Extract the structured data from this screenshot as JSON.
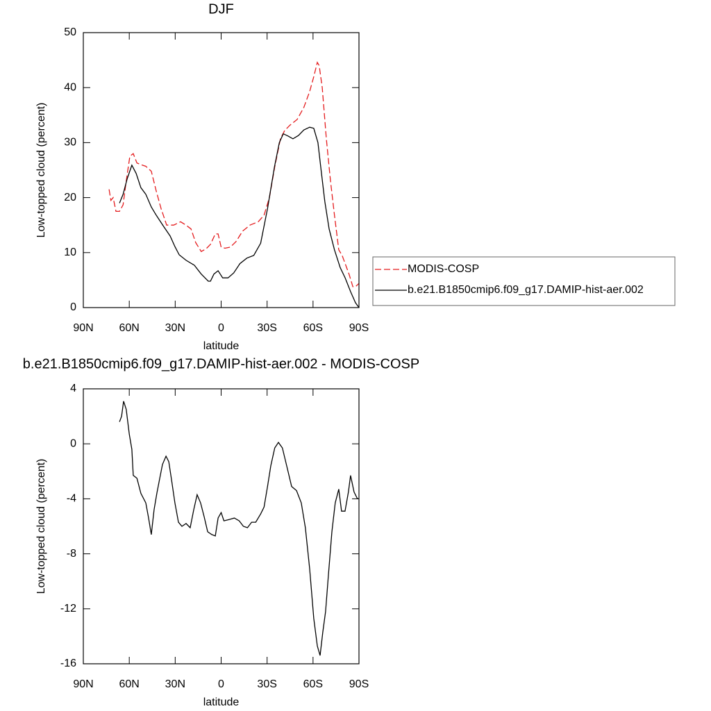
{
  "chart_data": [
    {
      "type": "line",
      "title": "DJF",
      "xlabel": "latitude",
      "ylabel": "Low-topped cloud (percent)",
      "xlim": [
        90,
        -90
      ],
      "xticks": [
        {
          "value": 90,
          "label": "90N"
        },
        {
          "value": 60,
          "label": "60N"
        },
        {
          "value": 30,
          "label": "30N"
        },
        0,
        {
          "value": -30,
          "label": "30S"
        },
        {
          "value": -60,
          "label": "60S"
        },
        {
          "value": -90,
          "label": "90S"
        }
      ],
      "ylim": [
        0,
        50
      ],
      "yticks": [
        0,
        10,
        20,
        30,
        40,
        50
      ],
      "legend": "right",
      "series": [
        {
          "name": "MODIS-COSP",
          "color": "#e41a1c",
          "dashed": true,
          "x": [
            73.2,
            72,
            70.5,
            68.7,
            66.4,
            64,
            62,
            59.6,
            57.4,
            55,
            52.4,
            49.2,
            45.6,
            42.4,
            39.2,
            35.6,
            31,
            26.5,
            23,
            19.7,
            16.6,
            13,
            9.8,
            7,
            3.8,
            2,
            0,
            -2.5,
            -6,
            -9.7,
            -14,
            -18.8,
            -24.2,
            -28,
            -31.5,
            -35,
            -38.7,
            -41.5,
            -45,
            -49.6,
            -54,
            -57.8,
            -60.5,
            -62.8,
            -64,
            -66,
            -68.7,
            -71.4,
            -74,
            -76.8,
            -79,
            -81,
            -83.6,
            -86,
            -87.7,
            -90
          ],
          "values": [
            21.5,
            19.5,
            20,
            17.5,
            17.5,
            18.7,
            23,
            27.5,
            28,
            26.3,
            26,
            25.7,
            24.8,
            21.2,
            18,
            15,
            15,
            15.6,
            15,
            14.3,
            11.8,
            10.2,
            10.7,
            11.5,
            13.4,
            13.4,
            11,
            10.8,
            11,
            12,
            13.9,
            15,
            15.6,
            16.8,
            20,
            25.6,
            30.7,
            32.2,
            33.2,
            34.2,
            36.4,
            39.3,
            42,
            44.6,
            44,
            40,
            30.7,
            23,
            16.8,
            10.5,
            9.5,
            8,
            6,
            3.8,
            3.8,
            4.4
          ]
        },
        {
          "name": "b.e21.B1850cmip6.f09_g17.DAMIP-hist-aer.002",
          "color": "#000000",
          "dashed": false,
          "x": [
            66.4,
            64,
            61.4,
            58.3,
            55.5,
            52.4,
            49.2,
            45.6,
            42.4,
            37.9,
            33.3,
            30.2,
            27.4,
            22.9,
            17.5,
            13,
            8.4,
            7,
            4.7,
            2,
            -1,
            -4.5,
            -8.2,
            -12.3,
            -16.8,
            -21.3,
            -25.8,
            -30.3,
            -34.8,
            -38,
            -40.6,
            -43.7,
            -46.9,
            -50.5,
            -54,
            -57.8,
            -60.5,
            -63.2,
            -65,
            -67.7,
            -70.5,
            -74,
            -77.7,
            -81,
            -84.5,
            -87.7,
            -90
          ],
          "values": [
            19,
            20.6,
            23.4,
            25.9,
            24.4,
            21.8,
            20.6,
            18.3,
            16.8,
            14.9,
            13,
            11.1,
            9.6,
            8.6,
            7.7,
            6.1,
            4.8,
            4.8,
            6.1,
            6.7,
            5.4,
            5.4,
            6.3,
            8,
            9,
            9.5,
            11.7,
            18,
            25.6,
            30,
            31.6,
            31.2,
            30.7,
            31.3,
            32.3,
            32.8,
            32.6,
            30,
            25.6,
            19.3,
            14.3,
            10.5,
            7.3,
            5.4,
            2.9,
            0.9,
            0
          ]
        }
      ]
    },
    {
      "type": "line",
      "title": "b.e21.B1850cmip6.f09_g17.DAMIP-hist-aer.002 - MODIS-COSP",
      "xlabel": "latitude",
      "ylabel": "Low-topped cloud (percent)",
      "xlim": [
        90,
        -90
      ],
      "xticks": [
        {
          "value": 90,
          "label": "90N"
        },
        {
          "value": 60,
          "label": "60N"
        },
        {
          "value": 30,
          "label": "30N"
        },
        0,
        {
          "value": -30,
          "label": "30S"
        },
        {
          "value": -60,
          "label": "60S"
        },
        {
          "value": -90,
          "label": "90S"
        }
      ],
      "ylim": [
        -16,
        4
      ],
      "yticks": [
        -16,
        -12,
        -8,
        -4,
        0,
        4
      ],
      "series": [
        {
          "color": "#000000",
          "dashed": false,
          "x": [
            66.4,
            65,
            63.7,
            62,
            60,
            58.3,
            57.4,
            55,
            52.4,
            49.2,
            47.4,
            45.6,
            43.8,
            42,
            40.1,
            38.3,
            36,
            34.2,
            32.4,
            30.2,
            27.9,
            25.6,
            22.9,
            20.2,
            17.9,
            15.7,
            13.4,
            11.1,
            8.8,
            6.1,
            3.8,
            2,
            0,
            -1.8,
            -5.4,
            -8.6,
            -11.8,
            -14.5,
            -17.2,
            -19.9,
            -22.6,
            -25.8,
            -28,
            -30.3,
            -32.4,
            -35,
            -37.4,
            -40,
            -42.8,
            -46,
            -49.2,
            -52.3,
            -55,
            -57.8,
            -60.5,
            -62.8,
            -64.6,
            -66.4,
            -68.2,
            -70,
            -72.3,
            -74.5,
            -76.8,
            -78.6,
            -80.9,
            -83.1,
            -84.5,
            -86.8,
            -89,
            -90
          ],
          "values": [
            1.6,
            2,
            3.1,
            2.5,
            0.7,
            -0.4,
            -2.3,
            -2.5,
            -3.6,
            -4.3,
            -5.4,
            -6.6,
            -4.8,
            -3.6,
            -2.5,
            -1.5,
            -0.9,
            -1.3,
            -2.6,
            -4.3,
            -5.7,
            -6,
            -5.8,
            -6.1,
            -4.8,
            -3.7,
            -4.3,
            -5.3,
            -6.4,
            -6.6,
            -6.7,
            -5.4,
            -5,
            -5.6,
            -5.5,
            -5.4,
            -5.6,
            -6,
            -6.1,
            -5.7,
            -5.7,
            -5.1,
            -4.6,
            -3.1,
            -1.6,
            -0.3,
            0.1,
            -0.3,
            -1.6,
            -3.1,
            -3.4,
            -4.3,
            -6.1,
            -9.1,
            -12.7,
            -14.7,
            -15.4,
            -13.7,
            -12.2,
            -9.6,
            -6.4,
            -4.3,
            -3.3,
            -4.9,
            -4.9,
            -3.5,
            -2.3,
            -3.5,
            -4,
            -4
          ]
        }
      ]
    }
  ]
}
